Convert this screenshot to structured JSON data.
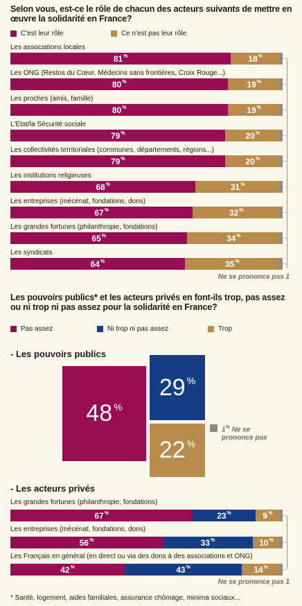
{
  "colors": {
    "role": "#990c55",
    "notRole": "#b88b4a",
    "noAnswer": "#8a8a8a",
    "navy": "#133d84"
  },
  "q1": {
    "title": "Selon vous, est-ce le rôle de chacun des acteurs suivants de mettre en œuvre la solidarité en France?",
    "legend_role": "C'est leur rôle",
    "legend_not_role": "Ce n'est pas leur rôle",
    "no_answer_note": "Ne se prononce pas 1",
    "pct": "%"
  },
  "q2": {
    "title": "Les pouvoirs publics* et les acteurs privés en font-ils trop, pas assez ou ni trop ni pas assez pour la solidarité en France?",
    "legend_not_enough": "Pas assez",
    "legend_neither": "Ni trop ni pas assez",
    "legend_too_much": "Trop",
    "public_title": "- Les pouvoirs publics",
    "public_not_enough": "48",
    "public_neither": "29",
    "public_too_much": "22",
    "public_no_answer": "1",
    "public_no_answer_label": "Ne se prononce pas",
    "private_title": "- Les acteurs privés",
    "no_answer_note": "Ne se prononce pas 1",
    "footnote": "* Santé, logement, aides familiales, assurance chômage, minima sociaux..."
  },
  "chart_data": [
    {
      "type": "bar",
      "title": "Selon vous, est-ce le rôle de chacun des acteurs suivants de mettre en œuvre la solidarité en France?",
      "categories": [
        "Les associations locales",
        "Les ONG (Restos du Cœur, Médecins sans frontières, Croix Rouge...)",
        "Les proches (amis, famille)",
        "L'Etat/la Sécurité sociale",
        "Les collectivités territoriales (communes, départements, régions...)",
        "Les institutions religieuses",
        "Les entreprises (mécénat, fondations, dons)",
        "Les grandes fortunes (philanthropie, fondations)",
        "Les syndicats"
      ],
      "series": [
        {
          "name": "C'est leur rôle",
          "values": [
            81,
            80,
            80,
            79,
            79,
            68,
            67,
            65,
            64
          ]
        },
        {
          "name": "Ce n'est pas leur rôle",
          "values": [
            18,
            19,
            19,
            20,
            20,
            31,
            32,
            34,
            35
          ]
        },
        {
          "name": "Ne se prononce pas",
          "values": [
            1,
            1,
            1,
            1,
            1,
            1,
            1,
            1,
            1
          ]
        }
      ],
      "stacked": true,
      "xlim": [
        0,
        100
      ]
    },
    {
      "type": "bar",
      "title": "- Les pouvoirs publics",
      "categories": [
        "Les pouvoirs publics"
      ],
      "series": [
        {
          "name": "Pas assez",
          "values": [
            48
          ]
        },
        {
          "name": "Ni trop ni pas assez",
          "values": [
            29
          ]
        },
        {
          "name": "Trop",
          "values": [
            22
          ]
        },
        {
          "name": "Ne se prononce pas",
          "values": [
            1
          ]
        }
      ]
    },
    {
      "type": "bar",
      "title": "- Les acteurs privés",
      "categories": [
        "Les grandes fortunes (philanthropie, fondations)",
        "Les entreprises (mécénat, fondations, dons)",
        "Les Français en général (en direct ou via des dons à des associations et ONG)"
      ],
      "series": [
        {
          "name": "Pas assez",
          "values": [
            67,
            56,
            42
          ]
        },
        {
          "name": "Ni trop ni pas assez",
          "values": [
            23,
            33,
            43
          ]
        },
        {
          "name": "Trop",
          "values": [
            9,
            10,
            14
          ]
        },
        {
          "name": "Ne se prononce pas",
          "values": [
            1,
            1,
            1
          ]
        }
      ],
      "stacked": true,
      "xlim": [
        0,
        100
      ]
    }
  ]
}
